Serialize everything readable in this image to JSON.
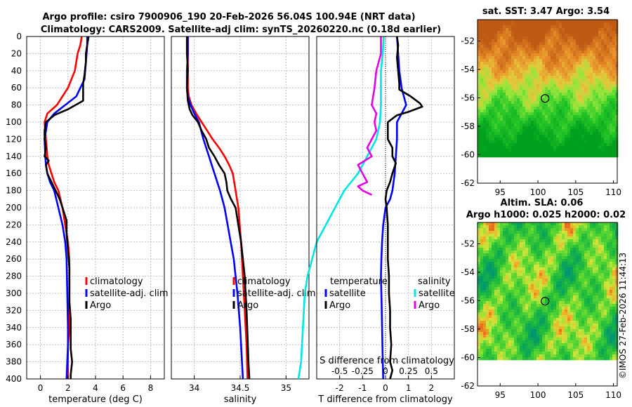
{
  "title_line1": "Argo profile: csiro 7900906_190 20-Feb-2026 56.04S 100.94E (NRT data)",
  "title_line2": "Climatology: CARS2009. Satellite-adj clim: synTS_20260220.nc (0.18d earlier)",
  "stamp": "©IMOS 27-Feb-2026 11:44:13",
  "colors": {
    "climatology": "#ff0000",
    "satellite": "#0000ff",
    "argo": "#000000",
    "sat_salinity": "#00e5e5",
    "argo_salinity": "#e600e6",
    "grid": "#b4b4b4"
  },
  "chart_data": [
    {
      "type": "line",
      "id": "temperature",
      "xlabel": "temperature (deg C)",
      "xlim": [
        -1,
        9
      ],
      "ylim": [
        400,
        0
      ],
      "xticks": [
        0,
        2,
        4,
        6,
        8
      ],
      "xtick_labels": [
        "0",
        "2",
        "4",
        "6",
        "8"
      ],
      "yticks": [
        0,
        20,
        40,
        60,
        80,
        100,
        120,
        140,
        160,
        180,
        200,
        220,
        240,
        260,
        280,
        300,
        320,
        340,
        360,
        380,
        400
      ],
      "ytick_labels": [
        "0",
        "20",
        "40",
        "60",
        "80",
        "100",
        "120",
        "140",
        "160",
        "180",
        "200",
        "220",
        "240",
        "260",
        "280",
        "300",
        "320",
        "340",
        "360",
        "380",
        "400"
      ],
      "legend": {
        "position": "center-right",
        "entries": [
          "climatology",
          "satellite-adj. clim",
          "Argo"
        ]
      },
      "series": [
        {
          "name": "climatology",
          "color": "#ff0000",
          "x": [
            3.0,
            2.9,
            2.7,
            2.5,
            2.0,
            1.2,
            0.5,
            0.3,
            0.4,
            0.5,
            0.6,
            0.8,
            1.0,
            1.3,
            1.6,
            1.8,
            2.0,
            2.1,
            2.1,
            2.1,
            2.0,
            2.0,
            2.0
          ],
          "y": [
            0,
            10,
            20,
            40,
            60,
            80,
            90,
            100,
            120,
            140,
            150,
            160,
            170,
            180,
            200,
            220,
            240,
            260,
            300,
            340,
            360,
            380,
            400
          ]
        },
        {
          "name": "satellite-adj. clim",
          "color": "#0000ff",
          "x": [
            3.4,
            3.4,
            3.3,
            3.2,
            2.6,
            1.8,
            1.0,
            0.5,
            0.3,
            0.35,
            0.4,
            0.5,
            0.7,
            1.0,
            1.3,
            1.6,
            1.8,
            1.9,
            1.95,
            2.0,
            2.0,
            1.95,
            1.9
          ],
          "y": [
            0,
            10,
            30,
            50,
            70,
            80,
            90,
            100,
            120,
            140,
            150,
            160,
            170,
            180,
            200,
            220,
            240,
            260,
            300,
            340,
            360,
            380,
            400
          ]
        },
        {
          "name": "Argo",
          "color": "#000000",
          "x": [
            3.5,
            3.4,
            3.3,
            3.3,
            3.2,
            3.1,
            3.1,
            2.0,
            1.0,
            0.4,
            0.3,
            0.3,
            0.4,
            0.3,
            0.6,
            0.4,
            0.5,
            0.8,
            1.1,
            1.4,
            1.6,
            1.9,
            1.9,
            2.0,
            2.1,
            2.1,
            2.1,
            2.2,
            2.2,
            2.2,
            2.3,
            2.2,
            2.2
          ],
          "y": [
            0,
            10,
            20,
            30,
            45,
            55,
            75,
            85,
            92,
            100,
            110,
            120,
            130,
            140,
            145,
            150,
            160,
            170,
            180,
            190,
            200,
            215,
            230,
            250,
            270,
            290,
            310,
            330,
            350,
            365,
            380,
            395,
            400
          ]
        }
      ]
    },
    {
      "type": "line",
      "id": "salinity",
      "xlabel": "salinity",
      "xlim": [
        33.75,
        35.25
      ],
      "ylim": [
        400,
        0
      ],
      "xticks": [
        34,
        34.5,
        35
      ],
      "xtick_labels": [
        "34",
        "34.5",
        "35"
      ],
      "legend": {
        "position": "center-right",
        "entries": [
          "climatology",
          "satellite-adj. clim",
          "Argo"
        ]
      },
      "series": [
        {
          "name": "climatology",
          "color": "#ff0000",
          "x": [
            33.93,
            33.93,
            33.93,
            33.93,
            33.94,
            33.97,
            34.02,
            34.08,
            34.14,
            34.2,
            34.27,
            34.33,
            34.38,
            34.42,
            34.45,
            34.48,
            34.51,
            34.53,
            34.55,
            34.57,
            34.58
          ],
          "y": [
            0,
            20,
            40,
            60,
            70,
            80,
            90,
            100,
            110,
            120,
            130,
            140,
            150,
            160,
            180,
            200,
            240,
            280,
            320,
            360,
            400
          ]
        },
        {
          "name": "satellite-adj. clim",
          "color": "#0000ff",
          "x": [
            33.93,
            33.93,
            33.92,
            33.92,
            33.93,
            33.96,
            34.0,
            34.05,
            34.1,
            34.16,
            34.22,
            34.28,
            34.33,
            34.38,
            34.43,
            34.47,
            34.5,
            34.52,
            34.53
          ],
          "y": [
            0,
            20,
            40,
            60,
            70,
            80,
            90,
            100,
            120,
            140,
            160,
            180,
            200,
            230,
            260,
            300,
            340,
            380,
            400
          ]
        },
        {
          "name": "Argo",
          "color": "#000000",
          "x": [
            33.92,
            33.92,
            33.93,
            33.92,
            33.93,
            33.95,
            33.98,
            34.04,
            34.08,
            34.13,
            34.16,
            34.22,
            34.27,
            34.33,
            34.35,
            34.36,
            34.4,
            34.45,
            34.48,
            34.51,
            34.53,
            34.55,
            34.57,
            34.58,
            34.59,
            34.6
          ],
          "y": [
            0,
            20,
            40,
            60,
            75,
            85,
            92,
            100,
            110,
            120,
            130,
            140,
            150,
            160,
            170,
            180,
            190,
            200,
            220,
            240,
            260,
            280,
            320,
            350,
            380,
            400
          ]
        }
      ]
    },
    {
      "type": "line",
      "id": "differences",
      "xlabel": "T difference from climatology",
      "xlabel_top": "S difference from climatology",
      "xlim": [
        -3,
        3
      ],
      "ylim": [
        400,
        0
      ],
      "xticks": [
        -2,
        -1,
        0,
        1,
        2
      ],
      "xtick_labels": [
        "-2",
        "-1",
        "0",
        "1",
        "2"
      ],
      "xticks_top": [
        -0.5,
        -0.25,
        0,
        0.25,
        0.5
      ],
      "xtick_labels_top": [
        "-0.5",
        "-0.25",
        "0",
        "0.25",
        "0.5"
      ],
      "legend": {
        "temperature": {
          "header": "temperature",
          "entries": [
            "satellite",
            "Argo"
          ]
        },
        "salinity": {
          "header": "salinity",
          "entries": [
            "satellite",
            "Argo"
          ]
        }
      },
      "series": [
        {
          "name": "temperature satellite",
          "color": "#0000ff",
          "x": [
            0.5,
            0.55,
            0.6,
            0.7,
            0.8,
            0.9,
            0.7,
            0.5,
            0.5,
            0.45,
            0.4,
            0.3,
            0.2,
            0.0,
            -0.1,
            -0.15,
            -0.18,
            -0.2,
            -0.18,
            -0.15,
            -0.12,
            -0.1
          ],
          "y": [
            0,
            20,
            40,
            60,
            70,
            80,
            90,
            100,
            120,
            140,
            160,
            180,
            190,
            200,
            220,
            240,
            260,
            280,
            300,
            340,
            380,
            400
          ]
        },
        {
          "name": "temperature Argo",
          "color": "#000000",
          "x": [
            0.5,
            0.55,
            0.5,
            0.55,
            0.6,
            0.6,
            1.1,
            1.5,
            1.6,
            1.0,
            0.5,
            0.1,
            0.1,
            0.3,
            0.3,
            0.45,
            0.3,
            0.2,
            0.05,
            0.0,
            0.05,
            0.1,
            0.1,
            0.1,
            0.15,
            0.15,
            0.2,
            0.2,
            0.25,
            0.2,
            0.3,
            0.2
          ],
          "y": [
            0,
            10,
            25,
            40,
            55,
            62,
            70,
            78,
            82,
            88,
            92,
            100,
            120,
            130,
            140,
            148,
            160,
            170,
            180,
            190,
            200,
            220,
            240,
            260,
            280,
            300,
            320,
            340,
            360,
            380,
            390,
            400
          ]
        },
        {
          "name": "salinity satellite",
          "color": "#00e5e5",
          "x": [
            -0.02,
            -0.03,
            -0.05,
            -0.05,
            -0.05,
            -0.06,
            -0.1,
            -0.2,
            -0.3,
            -0.45,
            -0.55,
            -0.65,
            -0.75,
            -0.8,
            -0.85,
            -0.88,
            -0.9,
            -0.92,
            -0.95
          ],
          "y": [
            0,
            20,
            40,
            60,
            80,
            100,
            120,
            140,
            160,
            180,
            200,
            220,
            240,
            260,
            280,
            300,
            340,
            380,
            400
          ]
        },
        {
          "name": "salinity Argo",
          "color": "#e600e6",
          "x": [
            -0.05,
            -0.05,
            -0.1,
            -0.12,
            -0.15,
            -0.1,
            -0.12,
            -0.1,
            -0.15,
            -0.2,
            -0.15,
            -0.3,
            -0.25,
            -0.2,
            -0.3,
            -0.25,
            -0.15
          ],
          "y": [
            0,
            20,
            40,
            60,
            80,
            90,
            100,
            110,
            120,
            130,
            140,
            150,
            160,
            170,
            175,
            180,
            185
          ]
        }
      ]
    },
    {
      "type": "heatmap",
      "id": "sst_map",
      "title": "sat. SST: 3.47 Argo: 3.54",
      "xlim": [
        92,
        110.5
      ],
      "ylim": [
        -62,
        -50.5
      ],
      "xticks": [
        95,
        100,
        105,
        110
      ],
      "xtick_labels": [
        "95",
        "100",
        "105",
        "110"
      ],
      "yticks": [
        -52,
        -54,
        -56,
        -58,
        -60,
        -62
      ],
      "ytick_labels": [
        "-52",
        "-54",
        "-56",
        "-58",
        "-60",
        "-62"
      ],
      "marker": {
        "lon": 100.94,
        "lat": -56.04
      },
      "data_lat_range": [
        -60,
        -50.5
      ]
    },
    {
      "type": "heatmap",
      "id": "sla_map",
      "title": "Altim. SLA: 0.06",
      "subtitle": "Argo h1000: 0.025 h2000: 0.02",
      "xlim": [
        92,
        110.5
      ],
      "ylim": [
        -62,
        -50.5
      ],
      "xticks": [
        95,
        100,
        105,
        110
      ],
      "xtick_labels": [
        "95",
        "100",
        "105",
        "110"
      ],
      "yticks": [
        -52,
        -54,
        -56,
        -58,
        -60,
        -62
      ],
      "ytick_labels": [
        "-52",
        "-54",
        "-56",
        "-58",
        "-60",
        "-62"
      ],
      "marker": {
        "lon": 100.94,
        "lat": -56.04
      },
      "data_lat_range": [
        -60,
        -50.5
      ]
    }
  ]
}
